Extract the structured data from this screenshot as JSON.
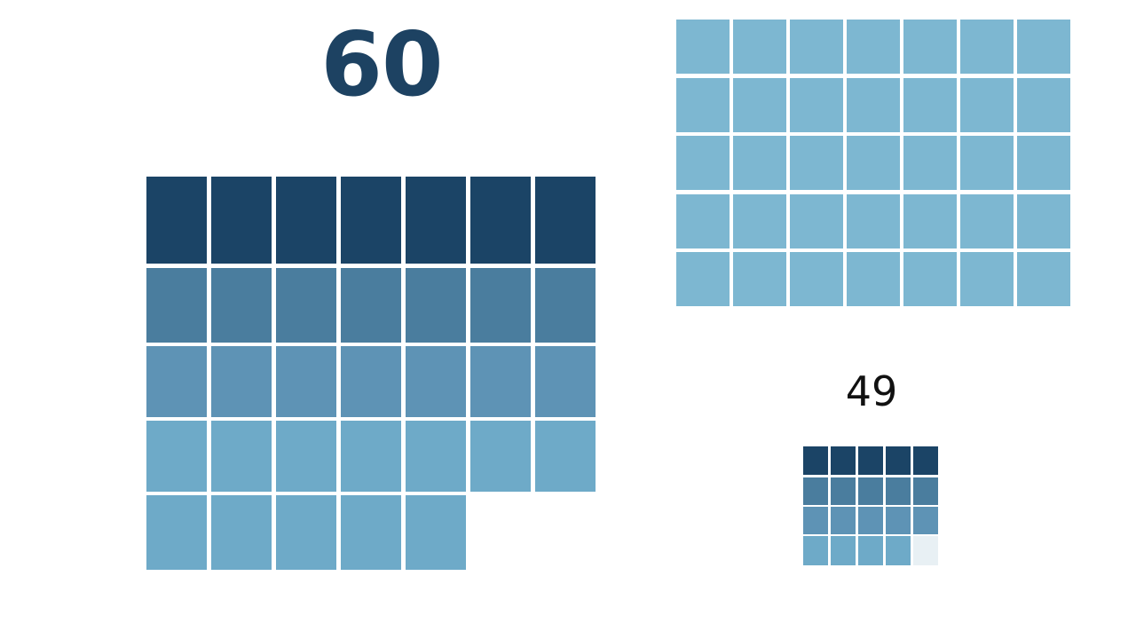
{
  "colors": {
    "dark": "#1b4466",
    "tier2": "#4a7d9e",
    "tier3": "#5e93b5",
    "tier4": "#6eaac8",
    "light": "#7db7d1",
    "faded": "#e8f0f4",
    "number_dark": "#1d4262",
    "number_black": "#111111"
  },
  "large_grid": {
    "label": "60",
    "columns": 7,
    "rows": [
      {
        "count": 7,
        "tone": "dark"
      },
      {
        "count": 7,
        "tone": "tier2"
      },
      {
        "count": 7,
        "tone": "tier3"
      },
      {
        "count": 7,
        "tone": "tier4"
      },
      {
        "count": 5,
        "tone": "tier4"
      }
    ]
  },
  "top_right_grid": {
    "columns": 7,
    "rows": 5,
    "tone": "light"
  },
  "small_grid": {
    "label": "49",
    "columns": 5,
    "rows": [
      {
        "count": 5,
        "tone": "dark"
      },
      {
        "count": 5,
        "tone": "tier2"
      },
      {
        "count": 5,
        "tone": "tier3"
      },
      {
        "count": 4,
        "tone": "tier4",
        "trailing_faded": 1
      }
    ]
  }
}
